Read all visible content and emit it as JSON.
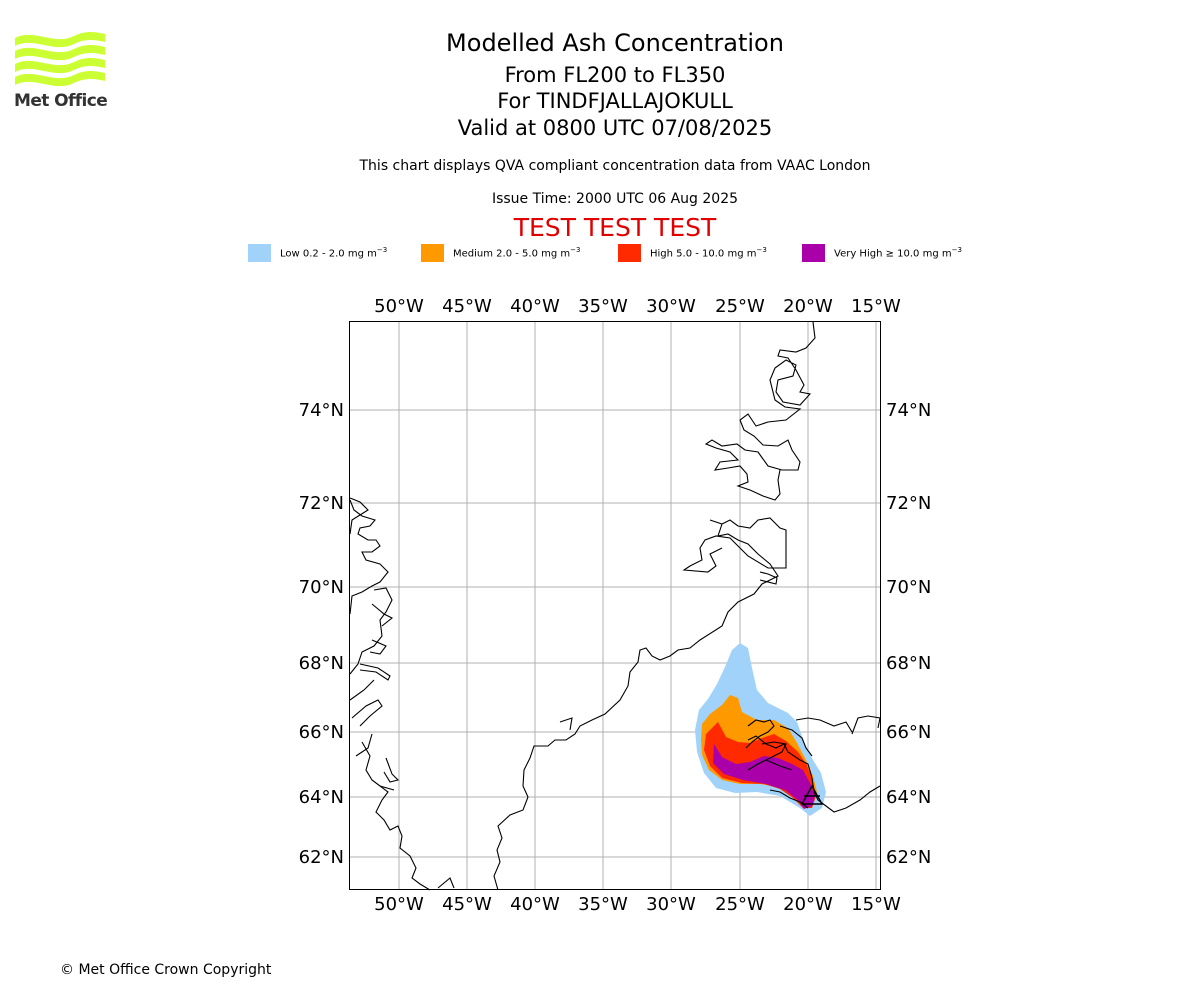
{
  "logo": {
    "name": "Met Office",
    "color": "#ccff33"
  },
  "titles": {
    "main": "Modelled Ash Concentration",
    "levels": "From FL200 to FL350",
    "volcano": "For TINDFJALLAJOKULL",
    "valid": "Valid at 0800 UTC 07/08/2025",
    "note": "This chart displays QVA compliant concentration data from VAAC London",
    "issue": "Issue Time: 2000 UTC 06 Aug 2025",
    "test": "TEST TEST TEST"
  },
  "legend": [
    {
      "label": "Low 0.2 - 2.0 mg m",
      "unit_exp": "−3",
      "color": "#a0d2fa"
    },
    {
      "label": "Medium 2.0 - 5.0 mg m",
      "unit_exp": "−3",
      "color": "#ff9900"
    },
    {
      "label": "High 5.0 - 10.0 mg m",
      "unit_exp": "−3",
      "color": "#ff2a00"
    },
    {
      "label": "Very High ≥ 10.0 mg m",
      "unit_exp": "−3",
      "color": "#aa00aa"
    }
  ],
  "map": {
    "longitude_ticks": [
      "50°W",
      "45°W",
      "40°W",
      "35°W",
      "30°W",
      "25°W",
      "20°W",
      "15°W"
    ],
    "latitude_ticks": [
      "74°N",
      "72°N",
      "70°N",
      "68°N",
      "66°N",
      "64°N",
      "62°N"
    ],
    "grid": true,
    "volcano_marker": "triangle",
    "volcano_location": {
      "lat": 63.9,
      "lon": -19.6
    }
  },
  "footer": {
    "copyright": "© Met Office Crown Copyright"
  }
}
